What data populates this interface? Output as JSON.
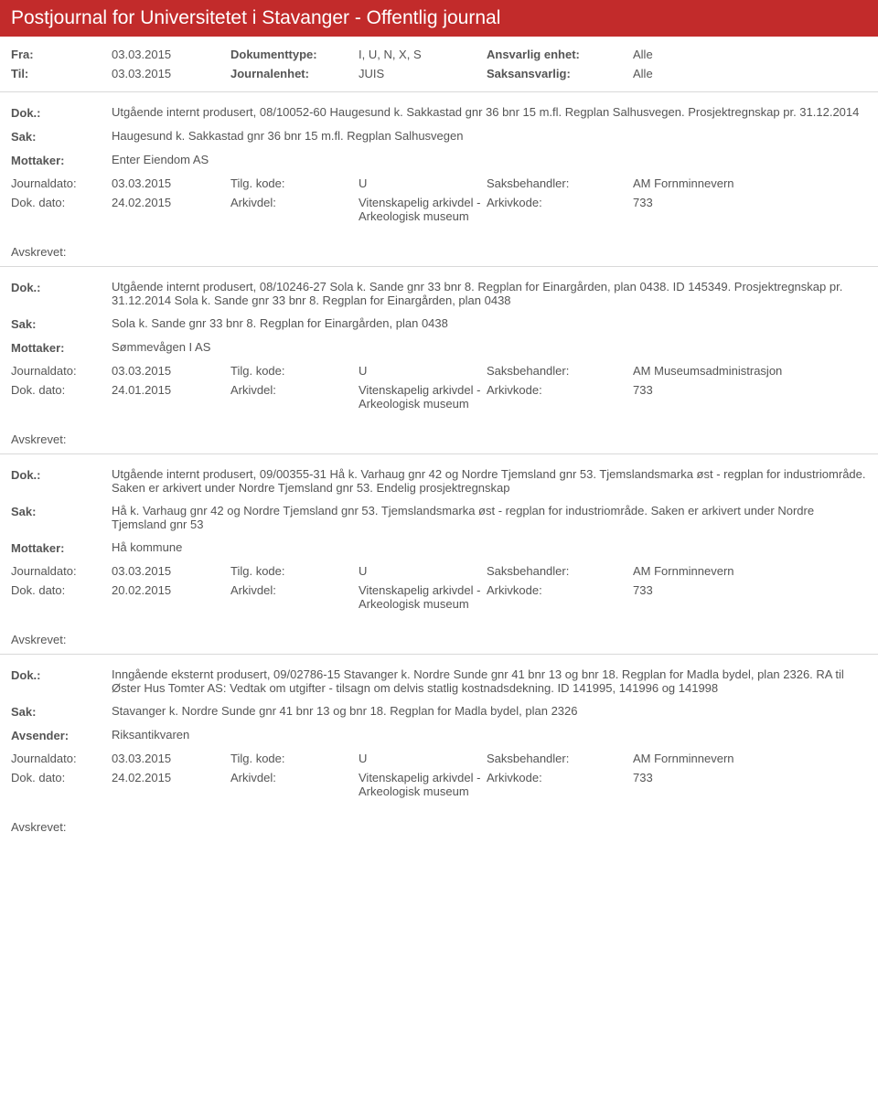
{
  "header": {
    "title": "Postjournal for Universitetet i Stavanger - Offentlig journal"
  },
  "filters": {
    "fra_label": "Fra:",
    "fra_value": "03.03.2015",
    "doktype_label": "Dokumenttype:",
    "doktype_value": "I, U, N, X, S",
    "ansvarlig_label": "Ansvarlig enhet:",
    "ansvarlig_value": "Alle",
    "til_label": "Til:",
    "til_value": "03.03.2015",
    "journalenhet_label": "Journalenhet:",
    "journalenhet_value": "JUIS",
    "saksansvarlig_label": "Saksansvarlig:",
    "saksansvarlig_value": "Alle"
  },
  "labels": {
    "dok": "Dok.:",
    "sak": "Sak:",
    "mottaker": "Mottaker:",
    "avsender": "Avsender:",
    "journaldato": "Journaldato:",
    "tilgkode": "Tilg. kode:",
    "saksbehandler": "Saksbehandler:",
    "dokdato": "Dok. dato:",
    "arkivdel": "Arkivdel:",
    "arkivkode": "Arkivkode:",
    "avskrevet": "Avskrevet:"
  },
  "entries": [
    {
      "dok": "Utgående internt produsert, 08/10052-60 Haugesund k. Sakkastad gnr 36 bnr 15 m.fl. Regplan Salhusvegen. Prosjektregnskap pr. 31.12.2014",
      "sak": "Haugesund k. Sakkastad gnr 36 bnr 15 m.fl. Regplan Salhusvegen",
      "party_label": "Mottaker:",
      "party_value": "Enter Eiendom AS",
      "journaldato": "03.03.2015",
      "tilgkode": "U",
      "saksbehandler": "AM Fornminnevern",
      "dokdato": "24.02.2015",
      "arkivdel": "Vitenskapelig arkivdel - Arkeologisk museum",
      "arkivkode": "733"
    },
    {
      "dok": "Utgående internt produsert, 08/10246-27 Sola k. Sande gnr 33 bnr 8. Regplan for Einargården, plan 0438. ID 145349. Prosjektregnskap pr. 31.12.2014 Sola k. Sande gnr 33 bnr 8. Regplan for Einargården, plan 0438",
      "sak": "Sola k. Sande gnr 33 bnr 8. Regplan for Einargården, plan 0438",
      "party_label": "Mottaker:",
      "party_value": "Sømmevågen I AS",
      "journaldato": "03.03.2015",
      "tilgkode": "U",
      "saksbehandler": "AM Museumsadministrasjon",
      "dokdato": "24.01.2015",
      "arkivdel": "Vitenskapelig arkivdel - Arkeologisk museum",
      "arkivkode": "733"
    },
    {
      "dok": "Utgående internt produsert, 09/00355-31 Hå k. Varhaug gnr 42 og Nordre Tjemsland gnr 53. Tjemslandsmarka øst - regplan for industriområde. Saken er arkivert under Nordre Tjemsland gnr 53. Endelig prosjektregnskap",
      "sak": "Hå k. Varhaug gnr 42 og Nordre Tjemsland gnr 53. Tjemslandsmarka øst - regplan for industriområde. Saken er arkivert under Nordre Tjemsland gnr 53",
      "party_label": "Mottaker:",
      "party_value": "Hå kommune",
      "journaldato": "03.03.2015",
      "tilgkode": "U",
      "saksbehandler": "AM Fornminnevern",
      "dokdato": "20.02.2015",
      "arkivdel": "Vitenskapelig arkivdel - Arkeologisk museum",
      "arkivkode": "733"
    },
    {
      "dok": "Inngående eksternt produsert, 09/02786-15 Stavanger k. Nordre Sunde gnr 41 bnr 13 og bnr 18. Regplan for Madla bydel, plan 2326. RA til Øster Hus Tomter AS: Vedtak om utgifter - tilsagn om delvis statlig kostnadsdekning. ID 141995, 141996 og 141998",
      "sak": "Stavanger k. Nordre Sunde gnr 41 bnr 13 og bnr 18. Regplan for Madla bydel, plan 2326",
      "party_label": "Avsender:",
      "party_value": "Riksantikvaren",
      "journaldato": "03.03.2015",
      "tilgkode": "U",
      "saksbehandler": "AM Fornminnevern",
      "dokdato": "24.02.2015",
      "arkivdel": "Vitenskapelig arkivdel - Arkeologisk museum",
      "arkivkode": "733"
    }
  ]
}
